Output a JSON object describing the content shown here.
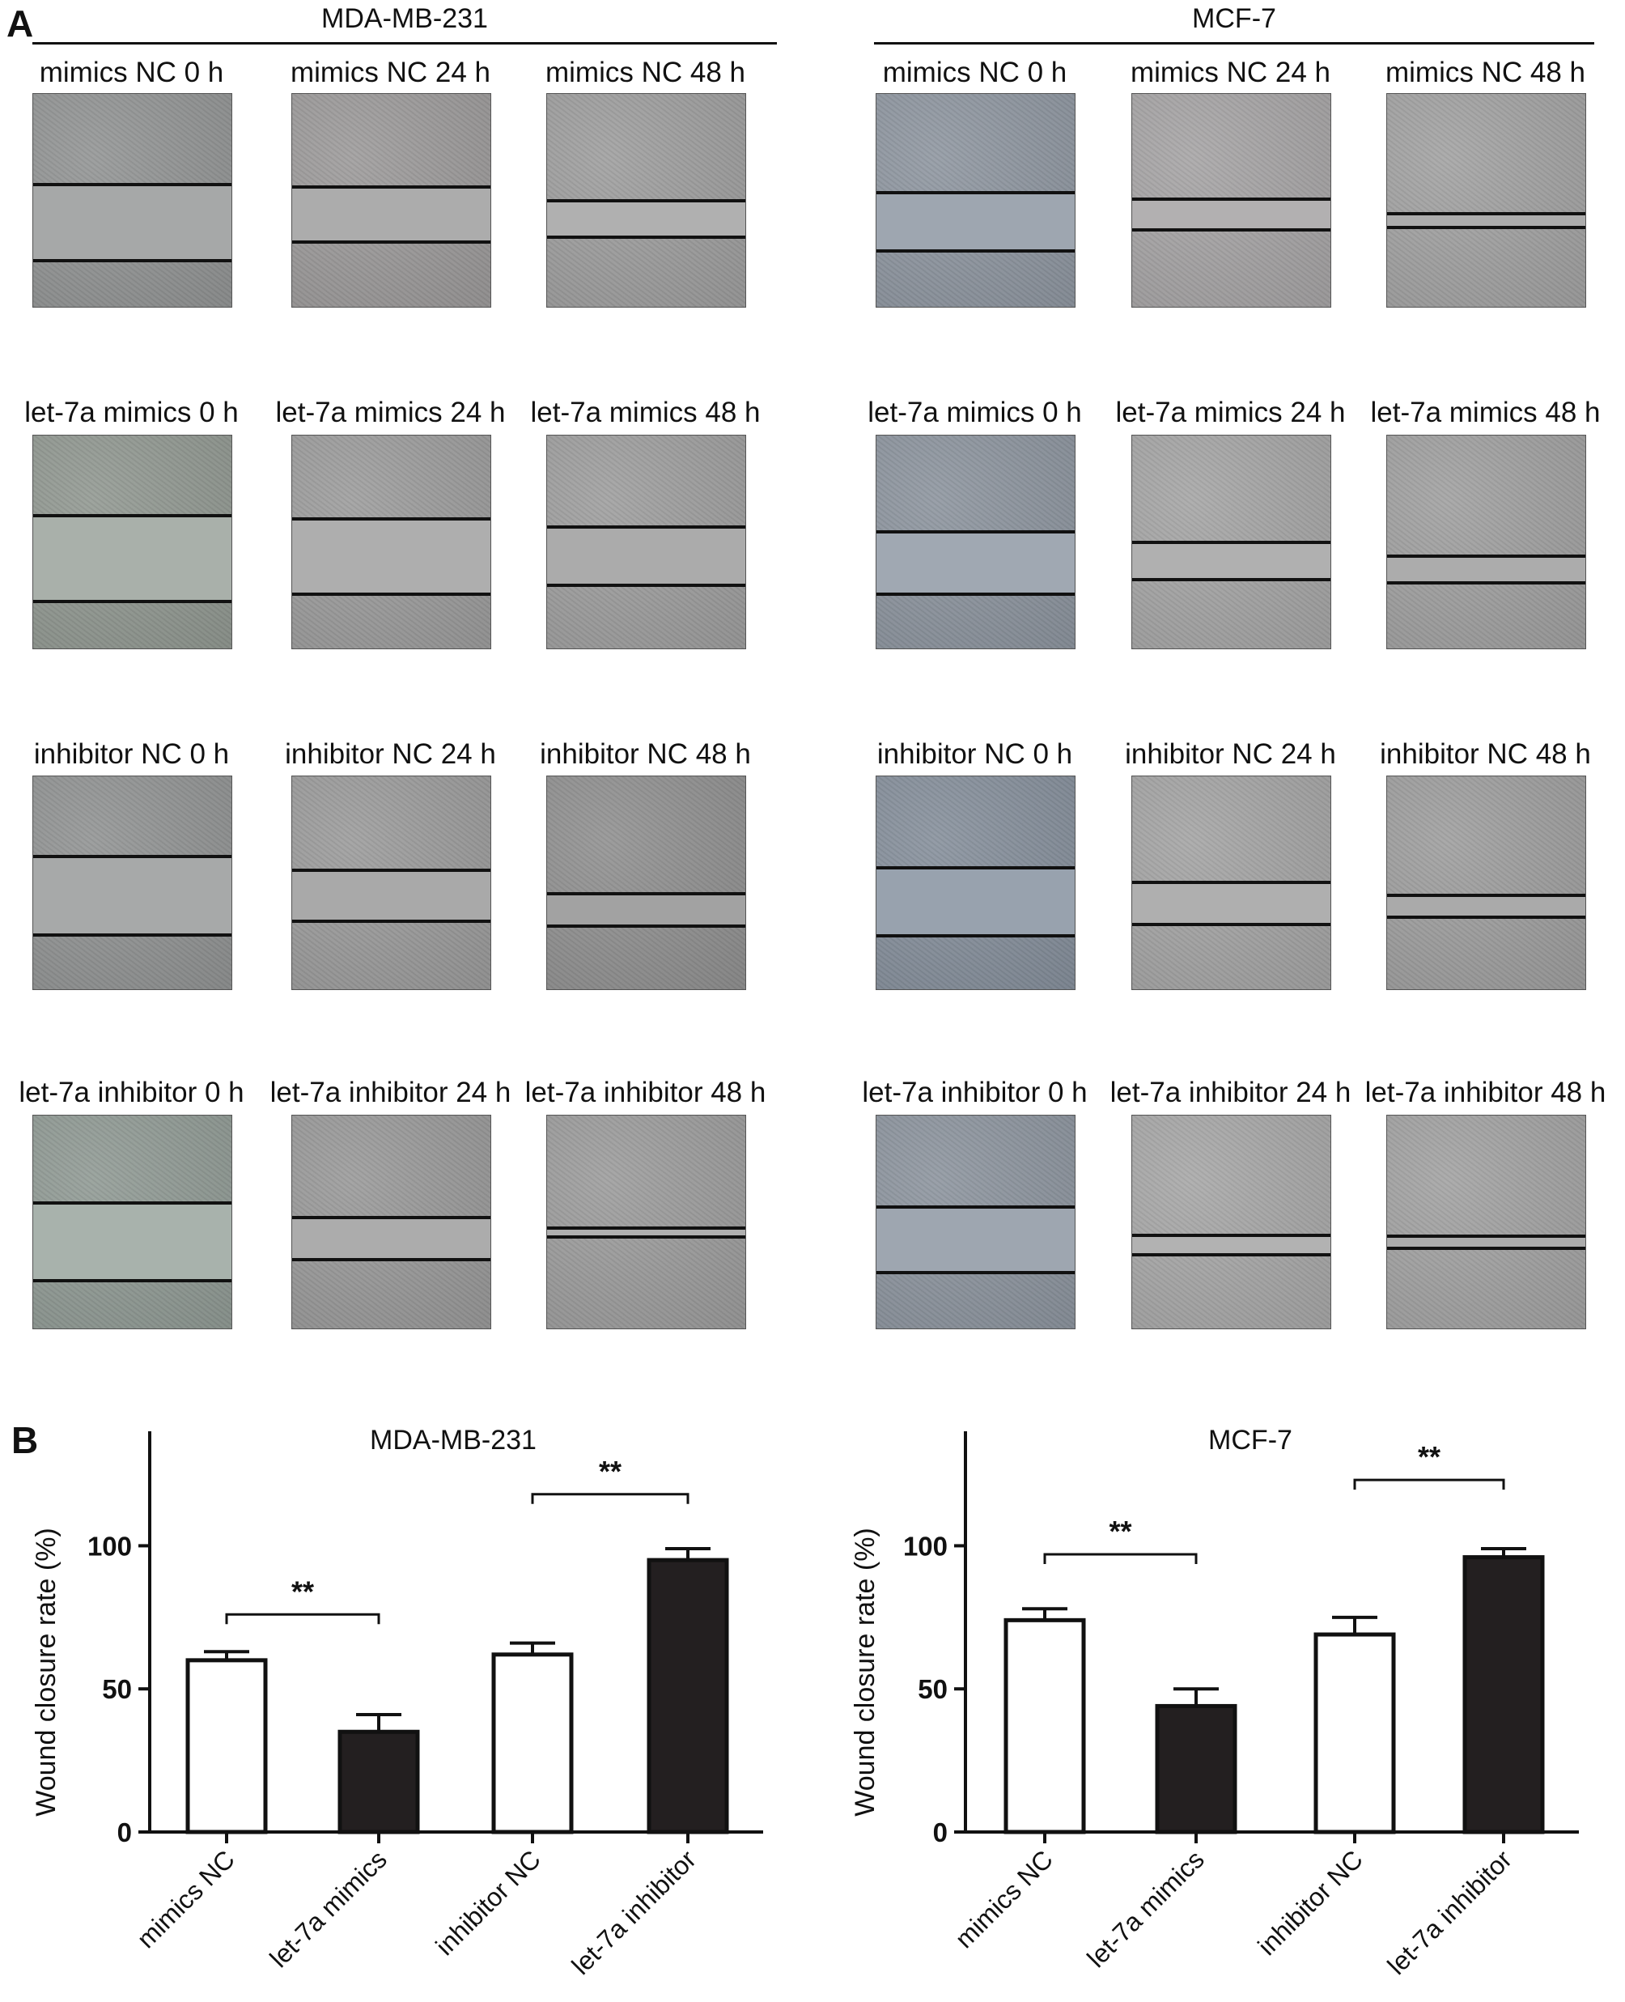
{
  "panel_a": {
    "letter": "A",
    "groups": [
      {
        "title": "MDA-MB-231",
        "rows": [
          {
            "captions": [
              "mimics NC 0 h",
              "mimics NC 24 h",
              "mimics NC 48 h"
            ],
            "tints": [
              "#909292",
              "#9a9898",
              "#9c9c9c"
            ],
            "gap_tints": [
              "#a6a8a8",
              "#acacac",
              "#b0b0b0"
            ]
          },
          {
            "captions": [
              "let-7a mimics 0 h",
              "let-7a mimics 24 h",
              "let-7a mimics 48 h"
            ],
            "tints": [
              "#8f968f",
              "#9a9a9a",
              "#9c9c9c"
            ],
            "gap_tints": [
              "#a9b0aa",
              "#aeaeae",
              "#ababab"
            ]
          },
          {
            "captions": [
              "inhibitor NC 0 h",
              "inhibitor NC 24 h",
              "inhibitor NC 48 h"
            ],
            "tints": [
              "#8f9191",
              "#999999",
              "#8e8e8e"
            ],
            "gap_tints": [
              "#a7a9a9",
              "#a9a9a9",
              "#a2a2a2"
            ]
          },
          {
            "captions": [
              "let-7a inhibitor 0 h",
              "let-7a inhibitor 24 h",
              "let-7a inhibitor 48 h"
            ],
            "tints": [
              "#8e9892",
              "#979797",
              "#9a9a9a"
            ],
            "gap_tints": [
              "#a8b2ac",
              "#acacac",
              "#b0b0b0"
            ]
          }
        ]
      },
      {
        "title": "MCF-7",
        "rows": [
          {
            "captions": [
              "mimics NC 0 h",
              "mimics NC 24 h",
              "mimics NC 48 h"
            ],
            "tints": [
              "#8c949e",
              "#a4a2a3",
              "#a0a0a0"
            ],
            "gap_tints": [
              "#9ea6b0",
              "#b2b0b1",
              "#acacac"
            ]
          },
          {
            "captions": [
              "let-7a mimics 0 h",
              "let-7a mimics 24 h",
              "let-7a mimics 48 h"
            ],
            "tints": [
              "#8a929c",
              "#a3a3a3",
              "#9e9e9e"
            ],
            "gap_tints": [
              "#a0a8b2",
              "#b0b0b0",
              "#acacac"
            ]
          },
          {
            "captions": [
              "inhibitor NC 0 h",
              "inhibitor NC 24 h",
              "inhibitor NC 48 h"
            ],
            "tints": [
              "#838d99",
              "#a2a2a2",
              "#9c9c9c"
            ],
            "gap_tints": [
              "#98a2ae",
              "#afafaf",
              "#aaaaaa"
            ]
          },
          {
            "captions": [
              "let-7a inhibitor 0 h",
              "let-7a inhibitor 24 h",
              "let-7a inhibitor 48 h"
            ],
            "tints": [
              "#8a929c",
              "#a5a5a5",
              "#a0a0a0"
            ],
            "gap_tints": [
              "#9ea6b0",
              "#b2b2b2",
              "#acacac"
            ]
          }
        ]
      }
    ]
  },
  "panel_b": {
    "letter": "B"
  },
  "chart_data": [
    {
      "type": "bar",
      "title": "MDA-MB-231",
      "ylabel": "Wound closure rate (%)",
      "xlabel": "",
      "categories": [
        "mimics NC",
        "let-7a mimics",
        "inhibitor NC",
        "let-7a inhibitor"
      ],
      "values": [
        60,
        35,
        62,
        95
      ],
      "errors": [
        3,
        6,
        4,
        4
      ],
      "fill": [
        "#ffffff",
        "#231f20",
        "#ffffff",
        "#231f20"
      ],
      "ylim": [
        0,
        140
      ],
      "yticks": [
        0,
        50,
        100
      ],
      "significance": [
        {
          "from": 0,
          "to": 1,
          "label": "**",
          "y": 76
        },
        {
          "from": 2,
          "to": 3,
          "label": "**",
          "y": 118
        }
      ],
      "grid": false
    },
    {
      "type": "bar",
      "title": "MCF-7",
      "ylabel": "Wound closure rate (%)",
      "xlabel": "",
      "categories": [
        "mimics NC",
        "let-7a mimics",
        "inhibitor NC",
        "let-7a inhibitor"
      ],
      "values": [
        74,
        44,
        69,
        96
      ],
      "errors": [
        4,
        6,
        6,
        3
      ],
      "fill": [
        "#ffffff",
        "#231f20",
        "#ffffff",
        "#231f20"
      ],
      "ylim": [
        0,
        140
      ],
      "yticks": [
        0,
        50,
        100
      ],
      "significance": [
        {
          "from": 0,
          "to": 1,
          "label": "**",
          "y": 97
        },
        {
          "from": 2,
          "to": 3,
          "label": "**",
          "y": 123
        }
      ],
      "grid": false
    }
  ]
}
